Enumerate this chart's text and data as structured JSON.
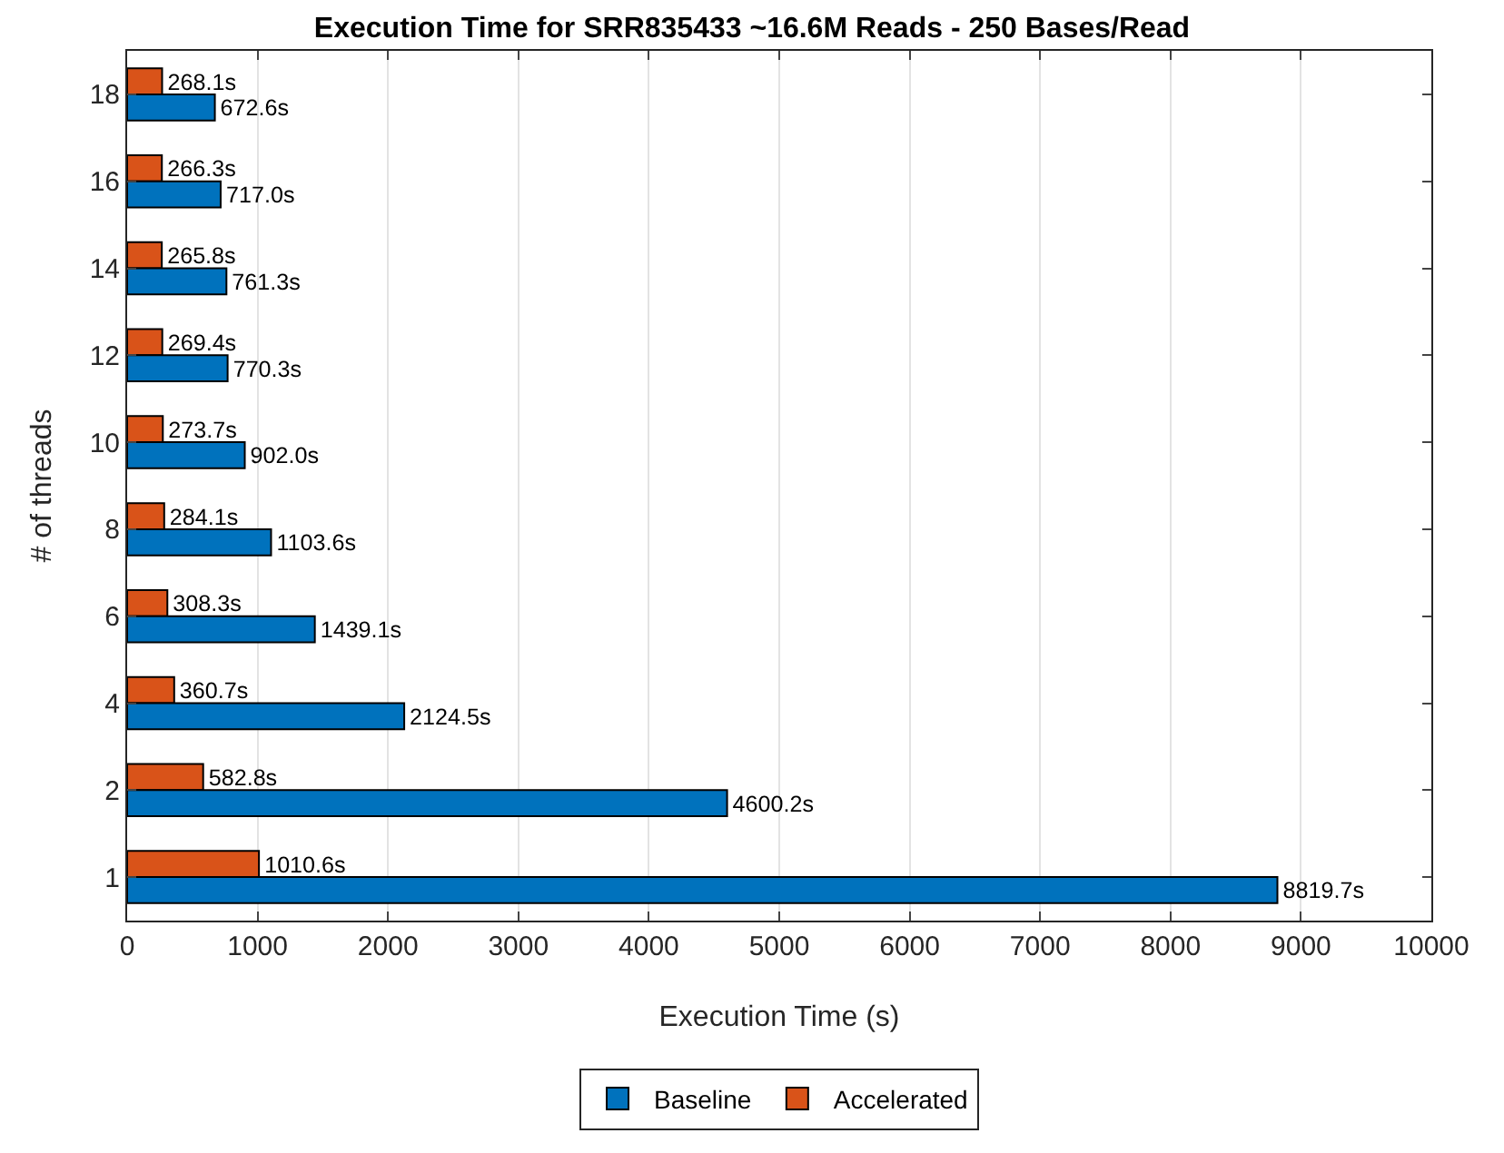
{
  "chart_data": {
    "type": "bar",
    "orientation": "horizontal",
    "title": "Execution Time for SRR835433 ~16.6M Reads - 250 Bases/Read",
    "xlabel": "Execution Time (s)",
    "ylabel": "# of threads",
    "categories": [
      "18",
      "16",
      "14",
      "12",
      "10",
      "8",
      "6",
      "4",
      "2",
      "1"
    ],
    "series": [
      {
        "name": "Baseline",
        "color": "#0072bd",
        "values": [
          672.6,
          717.0,
          761.3,
          770.3,
          902.0,
          1103.6,
          1439.1,
          2124.5,
          4600.2,
          8819.7
        ],
        "value_labels": [
          "672.6s",
          "717.0s",
          "761.3s",
          "770.3s",
          "902.0s",
          "1103.6s",
          "1439.1s",
          "2124.5s",
          "4600.2s",
          "8819.7s"
        ]
      },
      {
        "name": "Accelerated",
        "color": "#d95319",
        "values": [
          268.1,
          266.3,
          265.8,
          269.4,
          273.7,
          284.1,
          308.3,
          360.7,
          582.8,
          1010.6
        ],
        "value_labels": [
          "268.1s",
          "266.3s",
          "265.8s",
          "269.4s",
          "273.7s",
          "284.1s",
          "308.3s",
          "360.7s",
          "582.8s",
          "1010.6s"
        ]
      }
    ],
    "xlim": [
      0,
      10000
    ],
    "xticks": [
      0,
      1000,
      2000,
      3000,
      4000,
      5000,
      6000,
      7000,
      8000,
      9000,
      10000
    ],
    "grid": "x",
    "legend": "bottom"
  }
}
